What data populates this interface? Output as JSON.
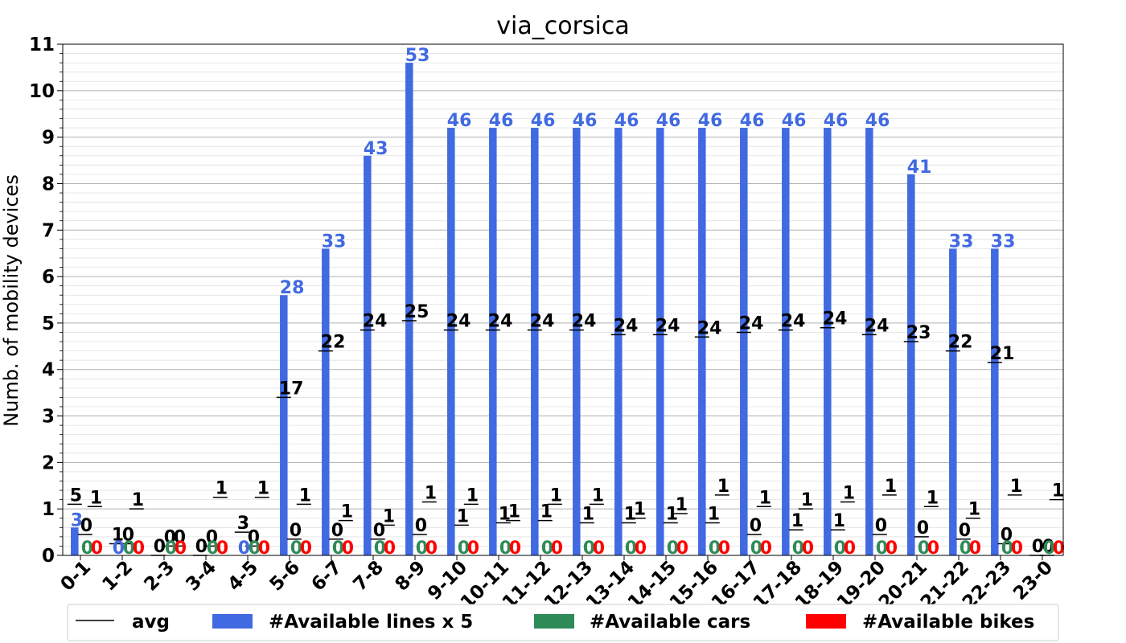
{
  "chart_data": {
    "type": "bar",
    "title": "via_corsica",
    "xlabel": "",
    "ylabel": "Numb. of mobility devices",
    "ylim": [
      0,
      11
    ],
    "yticks": [
      "0",
      "1",
      "2",
      "3",
      "4",
      "5",
      "6",
      "7",
      "8",
      "9",
      "10",
      "11"
    ],
    "grid": "horizontal major and minor",
    "legend_position": "bottom",
    "categories": [
      "0-1",
      "1-2",
      "2-3",
      "3-4",
      "4-5",
      "5-6",
      "6-7",
      "7-8",
      "8-9",
      "9-10",
      "10-11",
      "11-12",
      "12-13",
      "13-14",
      "14-15",
      "15-16",
      "16-17",
      "17-18",
      "18-19",
      "19-20",
      "20-21",
      "21-22",
      "22-23",
      "23-0"
    ],
    "series": [
      {
        "name": "#Available lines x 5",
        "color": "#4169E1",
        "values": [
          0.6,
          0,
          0,
          0,
          0,
          5.6,
          6.6,
          8.6,
          10.6,
          9.2,
          9.2,
          9.2,
          9.2,
          9.2,
          9.2,
          9.2,
          9.2,
          9.2,
          9.2,
          9.2,
          8.2,
          6.6,
          6.6,
          0
        ],
        "labels": [
          "3",
          "0",
          "",
          "",
          "0",
          "28",
          "33",
          "43",
          "53",
          "46",
          "46",
          "46",
          "46",
          "46",
          "46",
          "46",
          "46",
          "46",
          "46",
          "46",
          "41",
          "33",
          "33",
          ""
        ]
      },
      {
        "name": "#Available cars",
        "color": "#2E8B57",
        "values": [
          0,
          0,
          0,
          0,
          0,
          0,
          0,
          0,
          0,
          0,
          0,
          0,
          0,
          0,
          0,
          0,
          0,
          0,
          0,
          0,
          0,
          0,
          0,
          0
        ],
        "labels": [
          "0",
          "0",
          "0",
          "0",
          "0",
          "0",
          "0",
          "0",
          "0",
          "0",
          "0",
          "0",
          "0",
          "0",
          "0",
          "0",
          "0",
          "0",
          "0",
          "0",
          "0",
          "0",
          "0",
          "0"
        ]
      },
      {
        "name": "#Available bikes",
        "color": "#FF0000",
        "values": [
          0,
          0,
          0,
          0,
          0,
          0,
          0,
          0,
          0,
          0,
          0,
          0,
          0,
          0,
          0,
          0,
          0,
          0,
          0,
          0,
          0,
          0,
          0,
          0
        ],
        "labels": [
          "0",
          "0",
          "0",
          "0",
          "0",
          "0",
          "0",
          "0",
          "0",
          "0",
          "0",
          "0",
          "0",
          "0",
          "0",
          "0",
          "0",
          "0",
          "0",
          "0",
          "0",
          "0",
          "0",
          "0"
        ]
      }
    ],
    "avg": {
      "name": "avg",
      "color": "#000000",
      "lines_y": [
        1.1,
        0.25,
        0,
        0,
        0.5,
        3.4,
        4.4,
        4.85,
        5.05,
        4.85,
        4.85,
        4.85,
        4.85,
        4.75,
        4.75,
        4.7,
        4.8,
        4.85,
        4.9,
        4.75,
        4.6,
        4.4,
        4.15,
        0
      ],
      "lines_labels": [
        "5",
        "1",
        "0",
        "0",
        "3",
        "17",
        "22",
        "24",
        "25",
        "24",
        "24",
        "24",
        "24",
        "24",
        "24",
        "24",
        "24",
        "24",
        "24",
        "24",
        "23",
        "22",
        "21",
        "0"
      ],
      "cars_y": [
        0.45,
        0.25,
        0.2,
        0.2,
        0.2,
        0.35,
        0.35,
        0.35,
        0.45,
        0.65,
        0.7,
        0.75,
        0.7,
        0.7,
        0.7,
        0.7,
        0.45,
        0.55,
        0.55,
        0.45,
        0.4,
        0.35,
        0.25,
        0
      ],
      "cars_labels": [
        "0",
        "0",
        "0",
        "0",
        "0",
        "0",
        "0",
        "0",
        "0",
        "1",
        "1",
        "1",
        "1",
        "1",
        "1",
        "1",
        "0",
        "1",
        "1",
        "0",
        "0",
        "0",
        "0",
        "0"
      ],
      "bikes_y": [
        1.05,
        1.0,
        0.2,
        1.25,
        1.25,
        1.1,
        0.75,
        0.65,
        1.15,
        1.1,
        0.75,
        1.1,
        1.1,
        0.8,
        0.9,
        1.3,
        1.05,
        1.0,
        1.15,
        1.3,
        1.05,
        0.8,
        1.3,
        1.2
      ],
      "bikes_labels": [
        "1",
        "1",
        "0",
        "1",
        "1",
        "1",
        "1",
        "1",
        "1",
        "1",
        "1",
        "1",
        "1",
        "1",
        "1",
        "1",
        "1",
        "1",
        "1",
        "1",
        "1",
        "1",
        "1",
        "1"
      ]
    }
  }
}
